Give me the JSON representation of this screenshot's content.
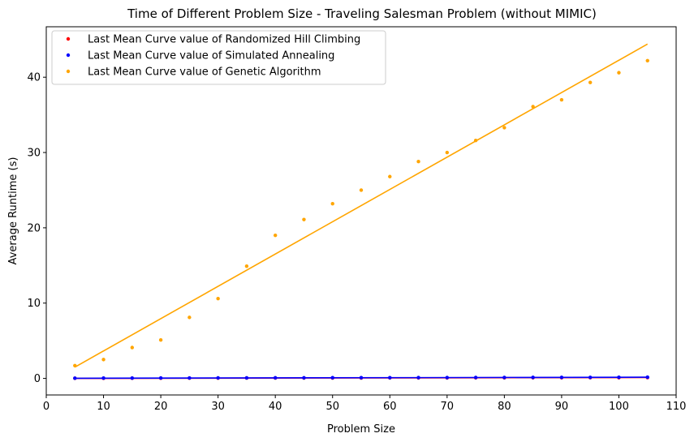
{
  "chart_data": {
    "type": "scatter",
    "title": "Time of Different Problem Size - Traveling Salesman Problem (without MIMIC)",
    "xlabel": "Problem Size",
    "ylabel": "Average Runtime (s)",
    "xlim": [
      0,
      110
    ],
    "ylim": [
      -2.2,
      46.7
    ],
    "xticks": [
      0,
      10,
      20,
      30,
      40,
      50,
      60,
      70,
      80,
      90,
      100,
      110
    ],
    "yticks": [
      0,
      10,
      20,
      30,
      40
    ],
    "grid": false,
    "legend_position": "top-left",
    "x": [
      5,
      10,
      15,
      20,
      25,
      30,
      35,
      40,
      45,
      50,
      55,
      60,
      65,
      70,
      75,
      80,
      85,
      90,
      95,
      100,
      105
    ],
    "series": [
      {
        "name": "Last Mean Curve value of Randomized Hill Climbing",
        "color": "#ff0000",
        "values": [
          0.02,
          0.02,
          0.03,
          0.03,
          0.04,
          0.04,
          0.05,
          0.05,
          0.05,
          0.06,
          0.06,
          0.07,
          0.07,
          0.07,
          0.08,
          0.08,
          0.09,
          0.09,
          0.1,
          0.1,
          0.11
        ],
        "fit": {
          "x": [
            5,
            105
          ],
          "y": [
            0.0,
            0.12
          ]
        }
      },
      {
        "name": "Last Mean Curve value of Simulated Annealing",
        "color": "#0000ff",
        "values": [
          0.03,
          0.04,
          0.04,
          0.05,
          0.06,
          0.07,
          0.07,
          0.08,
          0.08,
          0.09,
          0.1,
          0.1,
          0.11,
          0.11,
          0.12,
          0.12,
          0.13,
          0.14,
          0.14,
          0.15,
          0.16
        ],
        "fit": {
          "x": [
            5,
            105
          ],
          "y": [
            0.02,
            0.16
          ]
        }
      },
      {
        "name": "Last Mean Curve value of Genetic Algorithm",
        "color": "#ffa500",
        "values": [
          1.7,
          2.5,
          4.1,
          5.1,
          8.1,
          10.6,
          14.9,
          19.0,
          21.1,
          23.2,
          25.0,
          26.8,
          28.8,
          30.0,
          31.6,
          33.3,
          36.1,
          37.0,
          39.3,
          40.6,
          42.2
        ],
        "fit": {
          "x": [
            5,
            105
          ],
          "y": [
            1.5,
            44.4
          ]
        }
      }
    ]
  }
}
